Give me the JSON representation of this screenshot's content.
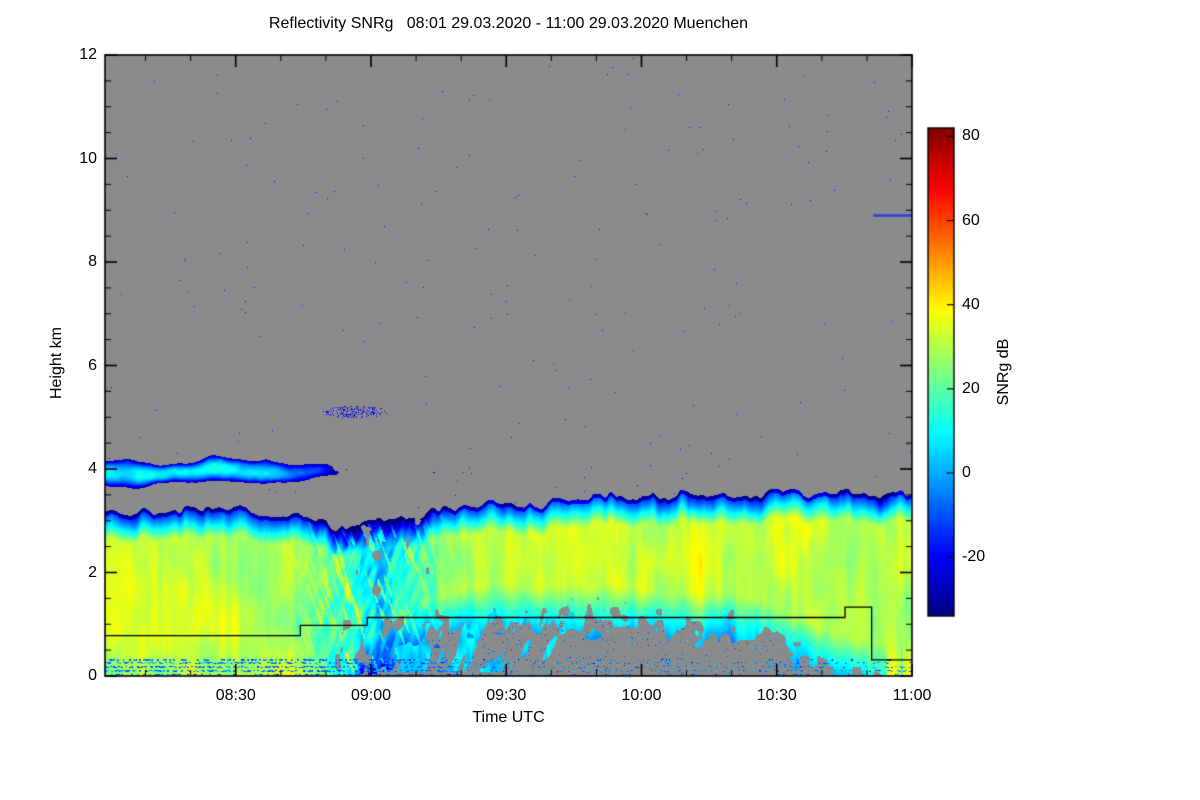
{
  "chart_data": {
    "type": "heatmap",
    "title": "Reflectivity SNRg   08:01 29.03.2020 - 11:00 29.03.2020 Muenchen",
    "xlabel": "Time UTC",
    "ylabel": "Height km",
    "colorbar_label": "SNRg dB",
    "xlim": [
      "08:01",
      "11:00"
    ],
    "ylim": [
      0,
      12
    ],
    "x_total_minutes": 179,
    "x_ticks": [
      {
        "label": "08:30",
        "t": 0.162
      },
      {
        "label": "09:00",
        "t": 0.3296
      },
      {
        "label": "09:30",
        "t": 0.4972
      },
      {
        "label": "10:00",
        "t": 0.6648
      },
      {
        "label": "10:30",
        "t": 0.8324
      },
      {
        "label": "11:00",
        "t": 1.0
      }
    ],
    "y_ticks": [
      0,
      2,
      4,
      6,
      8,
      10,
      12
    ],
    "colorbar_ticks": [
      80,
      60,
      40,
      20,
      0,
      -20
    ],
    "value_range": [
      -34,
      82
    ],
    "nodata_color": "#8b8b8b",
    "colormap_stops": [
      [
        0.0,
        0,
        0,
        130
      ],
      [
        0.125,
        0,
        0,
        255
      ],
      [
        0.375,
        0,
        255,
        255
      ],
      [
        0.625,
        255,
        255,
        0
      ],
      [
        0.875,
        255,
        0,
        0
      ],
      [
        1.0,
        130,
        0,
        0
      ]
    ],
    "features": {
      "main_layer": {
        "description": "precipitating cloud deck ~0-3.5 km, SNRg mostly 20-40 dB (yellow-green core, cyan/blue fringes), scalloped cloud top",
        "core_value_db": 32,
        "top_fringe_km": 0.55,
        "top_profile": [
          [
            0,
            3.15
          ],
          [
            0.18,
            3.22
          ],
          [
            0.24,
            3.1
          ],
          [
            0.3,
            2.8
          ],
          [
            0.34,
            2.95
          ],
          [
            0.42,
            3.25
          ],
          [
            0.55,
            3.4
          ],
          [
            0.7,
            3.45
          ],
          [
            0.85,
            3.5
          ],
          [
            1,
            3.55
          ]
        ],
        "bottom_profile": [
          [
            0,
            0.02
          ],
          [
            0.28,
            0.02
          ],
          [
            0.33,
            0.3
          ],
          [
            0.4,
            1.0
          ],
          [
            0.48,
            1.25
          ],
          [
            0.6,
            1.2
          ],
          [
            0.72,
            1.1
          ],
          [
            0.82,
            0.95
          ],
          [
            0.88,
            0.5
          ],
          [
            0.93,
            0.2
          ],
          [
            1,
            0.12
          ]
        ],
        "disturbance": {
          "center_t": 0.33,
          "width_t": 0.07,
          "description": "weak blue echo with slanted fall streaks near 08:55-09:10"
        }
      },
      "elevated_layer": {
        "description": "thin blue-cyan cloud layer near 3.8-4.1 km from 08:01 to about 08:45",
        "t_end": 0.26,
        "center_km": 3.93,
        "halfwidth_km": 0.13,
        "value_db": 9
      },
      "clutter_rows_km": [
        0.03,
        0.1,
        0.175,
        0.25,
        0.315
      ],
      "speckle_density": 0.0005,
      "speckle_value_db": -24,
      "dot_cluster": {
        "t": 0.31,
        "h_km": 5.1,
        "rt": 0.04,
        "rh": 0.12
      },
      "black_step_line_t_h": [
        [
          0,
          0.78
        ],
        [
          0.242,
          0.78
        ],
        [
          0.242,
          0.98
        ],
        [
          0.325,
          0.98
        ],
        [
          0.325,
          1.13
        ],
        [
          0.917,
          1.13
        ],
        [
          0.917,
          1.33
        ],
        [
          0.95,
          1.33
        ],
        [
          0.95,
          0.31
        ],
        [
          1,
          0.31
        ]
      ],
      "blue_segment": {
        "t_start": 0.952,
        "t_end": 1.0,
        "height_km": 8.9,
        "color": "#2a3cec"
      }
    }
  }
}
